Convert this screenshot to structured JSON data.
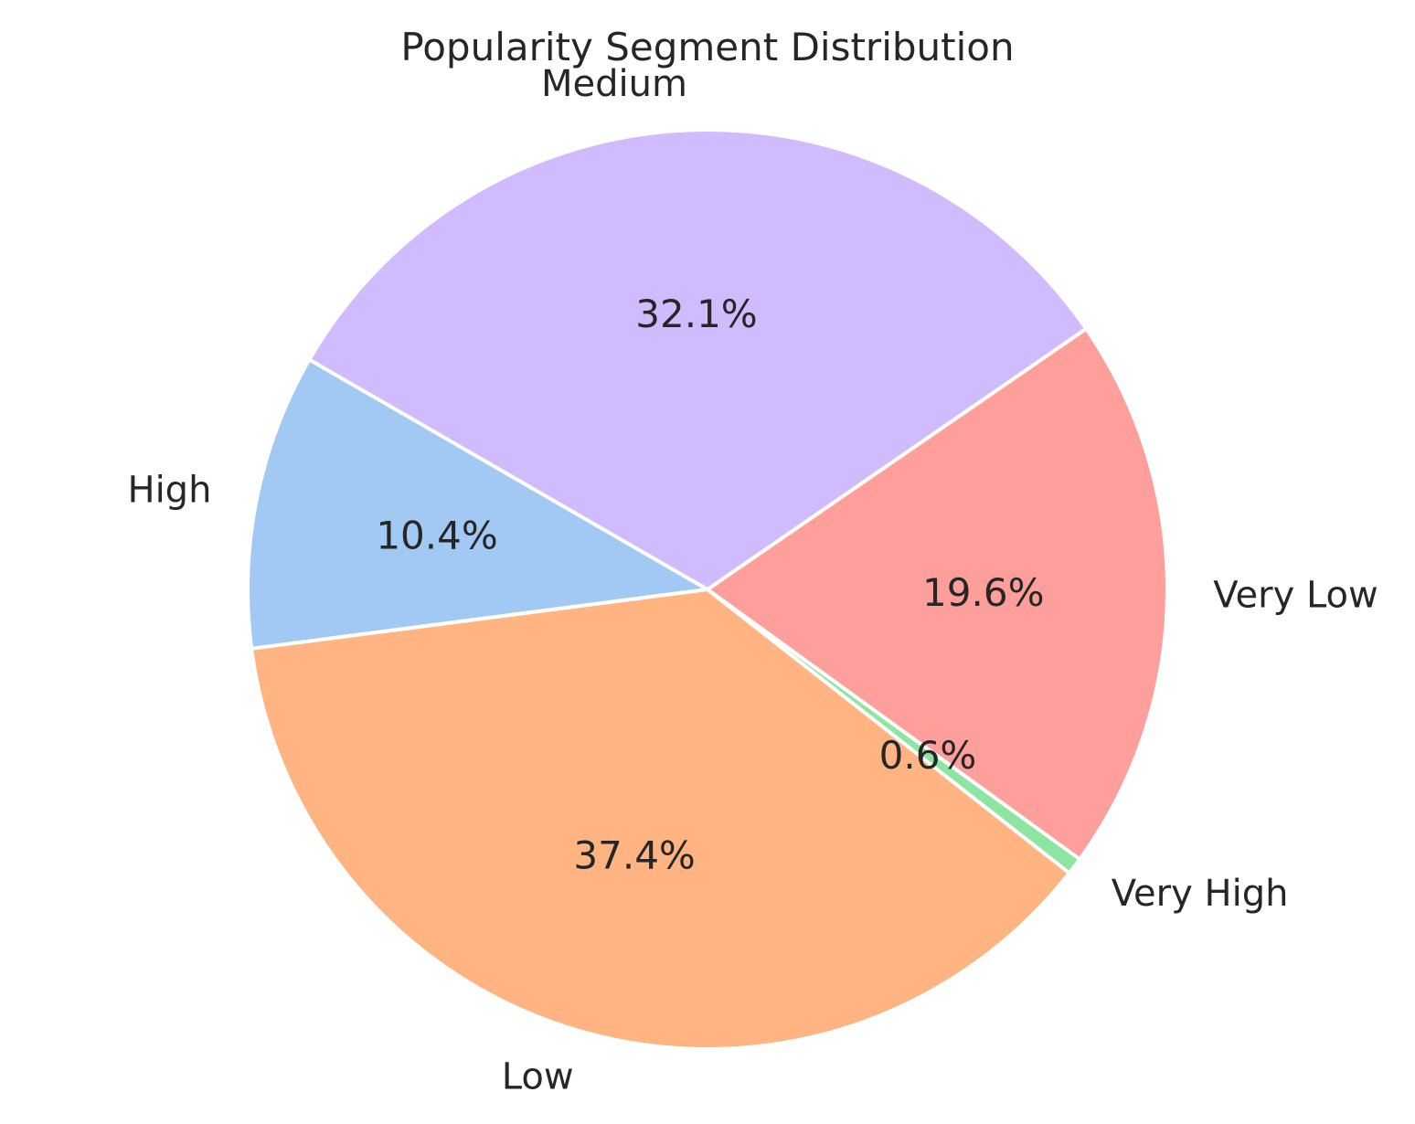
{
  "chart_data": {
    "type": "pie",
    "title": "Popularity Segment Distribution",
    "start_angle_deg": 150,
    "direction": "counterclockwise",
    "slices": [
      {
        "label": "High",
        "value": 10.4,
        "pct_label": "10.4%",
        "color": "#a1c9f4"
      },
      {
        "label": "Low",
        "value": 37.4,
        "pct_label": "37.4%",
        "color": "#ffb482"
      },
      {
        "label": "Very High",
        "value": 0.6,
        "pct_label": "0.6%",
        "color": "#8de5a1"
      },
      {
        "label": "Very Low",
        "value": 19.6,
        "pct_label": "19.6%",
        "color": "#ff9f9b"
      },
      {
        "label": "Medium",
        "value": 32.1,
        "pct_label": "32.1%",
        "color": "#d0bbff"
      }
    ]
  }
}
